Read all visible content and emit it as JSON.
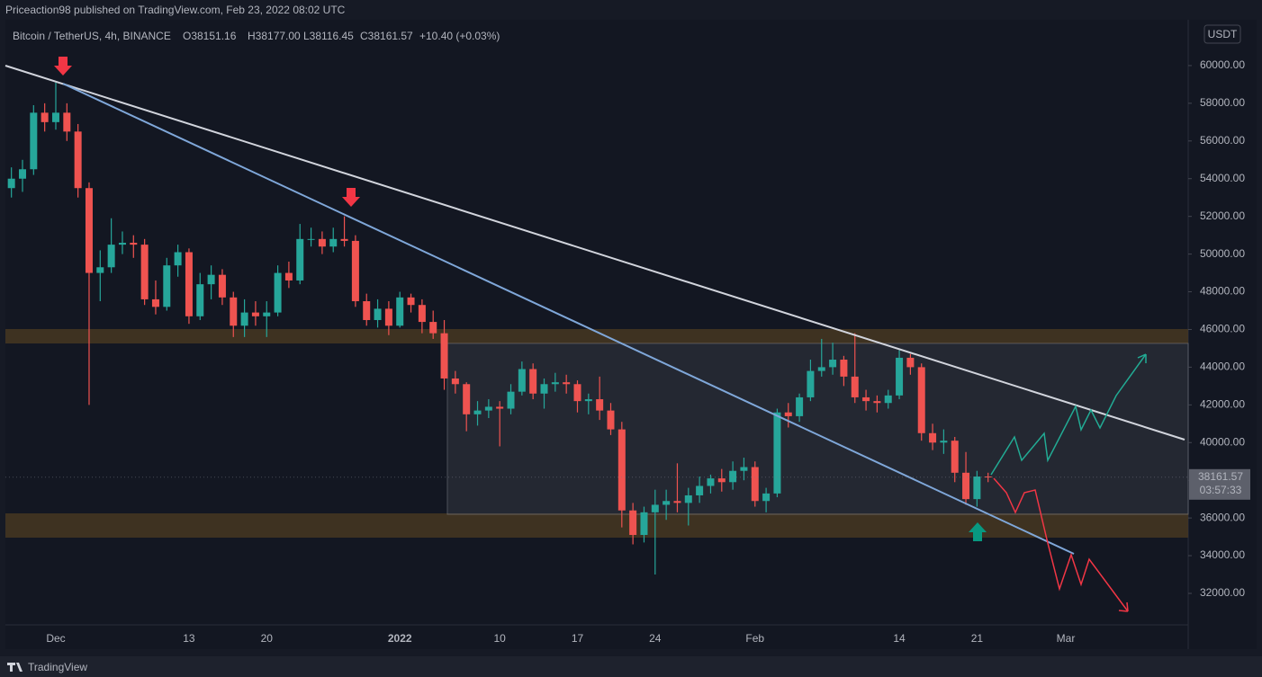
{
  "header": {
    "publisher": "Priceaction98 published on TradingView.com, Feb 23, 2022 08:02 UTC"
  },
  "legend": {
    "symbol": "Bitcoin / TetherUS, 4h, BINANCE",
    "open": "O38151.16",
    "high": "H38177.00",
    "low": "L38116.45",
    "close": "C38161.57",
    "change": "+10.40 (+0.03%)"
  },
  "currency": "USDT",
  "countdown": "03:57:33",
  "footer": {
    "brand": "TradingView"
  },
  "chart_data": {
    "type": "candlestick",
    "categories": [
      null,
      null,
      null,
      null,
      "Dec",
      null,
      null,
      null,
      null,
      null,
      null,
      null,
      null,
      null,
      null,
      null,
      "13",
      null,
      null,
      null,
      null,
      null,
      null,
      "20",
      null,
      null,
      null,
      null,
      null,
      null,
      null,
      null,
      null,
      null,
      null,
      "2022",
      null,
      null,
      null,
      null,
      null,
      null,
      null,
      null,
      "10",
      null,
      null,
      null,
      null,
      null,
      null,
      "17",
      null,
      null,
      null,
      null,
      null,
      null,
      "24",
      null,
      null,
      null,
      null,
      null,
      null,
      null,
      null,
      "Feb",
      null,
      null,
      null,
      null,
      null,
      null,
      null,
      null,
      null,
      null,
      null,
      null,
      "14",
      null,
      null,
      null,
      null,
      null,
      null,
      "21",
      null,
      null,
      null,
      null,
      null,
      null,
      null,
      "Mar",
      null,
      null,
      null,
      null,
      null,
      null,
      null,
      null,
      null,
      null,
      null
    ],
    "open": [
      53500,
      54000,
      54500,
      57500,
      57000,
      57500,
      56500,
      53500,
      49000,
      49300,
      50500,
      50600,
      50500,
      47600,
      47200,
      49400,
      50100,
      46700,
      48400,
      48900,
      47700,
      46200,
      46900,
      46700,
      46900,
      49000,
      48600,
      50800,
      50800,
      50400,
      50800,
      50700,
      47500,
      46500,
      47100,
      46200,
      47700,
      47300,
      46400,
      45800,
      43400,
      43100,
      41500,
      41700,
      41900,
      41800,
      42700,
      43900,
      42600,
      43100,
      43200,
      43100,
      42200,
      42300,
      41700,
      40700,
      36400,
      35100,
      36300,
      36700,
      36900,
      36800,
      37200,
      37700,
      38100,
      37900,
      38500,
      38700,
      36900,
      37300,
      41600,
      41400,
      42400,
      43800,
      44000,
      44400,
      43500,
      42400,
      42200,
      42100,
      42500,
      44500,
      44000,
      40500,
      40000,
      40100,
      38400,
      37000,
      38200,
      null,
      null,
      null,
      null,
      null,
      null,
      null,
      null,
      null,
      null,
      null,
      null,
      null,
      null,
      null,
      null,
      null,
      null
    ],
    "high": [
      54600,
      55000,
      57900,
      58000,
      59100,
      58000,
      56900,
      53800,
      50200,
      51900,
      51200,
      51000,
      50800,
      48600,
      49800,
      50500,
      50300,
      49000,
      49400,
      49200,
      48000,
      47600,
      47500,
      47500,
      49400,
      49600,
      51600,
      51400,
      51200,
      51400,
      52000,
      51000,
      47900,
      47600,
      47500,
      48000,
      47900,
      47600,
      47000,
      46500,
      43800,
      43200,
      42200,
      42300,
      42200,
      43100,
      44300,
      44200,
      43400,
      43700,
      43600,
      43300,
      42600,
      43500,
      42100,
      41100,
      36800,
      36600,
      37500,
      37500,
      38900,
      37600,
      38200,
      38300,
      38600,
      39000,
      39200,
      39000,
      37600,
      41800,
      42100,
      42600,
      44400,
      45500,
      45300,
      44600,
      45800,
      42800,
      42500,
      42800,
      44900,
      44700,
      44200,
      41000,
      40700,
      40300,
      39500,
      38500,
      38400,
      null,
      null,
      null,
      null,
      null,
      null,
      null,
      null,
      null,
      null,
      null,
      null,
      null,
      null,
      null,
      null,
      null,
      null
    ],
    "low": [
      53000,
      53300,
      54200,
      56500,
      56600,
      56000,
      53000,
      42000,
      47500,
      49000,
      50000,
      49800,
      47300,
      46800,
      47000,
      48800,
      46300,
      46500,
      47600,
      47300,
      45600,
      45600,
      46200,
      45600,
      46700,
      48200,
      48400,
      50400,
      50000,
      50100,
      50400,
      47200,
      46200,
      46100,
      45700,
      46100,
      46900,
      45800,
      45500,
      42800,
      42600,
      40600,
      40900,
      41300,
      39800,
      41500,
      42500,
      42300,
      41800,
      42700,
      42600,
      41600,
      41500,
      41200,
      40400,
      35500,
      34600,
      34700,
      33000,
      35900,
      36300,
      35600,
      36800,
      37300,
      37400,
      37500,
      38000,
      36600,
      36300,
      37100,
      40800,
      41100,
      42200,
      43500,
      43600,
      43000,
      42100,
      41700,
      41600,
      41800,
      42300,
      43600,
      40100,
      39600,
      39400,
      37900,
      36700,
      36600,
      37900,
      null,
      null,
      null,
      null,
      null,
      null,
      null,
      null,
      null,
      null,
      null,
      null,
      null,
      null,
      null,
      null,
      null,
      null
    ],
    "close": [
      54000,
      54500,
      57500,
      57000,
      57500,
      56500,
      53500,
      49000,
      49300,
      50500,
      50600,
      50500,
      47600,
      47200,
      49400,
      50100,
      46700,
      48400,
      48900,
      47700,
      46200,
      46900,
      46700,
      46900,
      49000,
      48600,
      50800,
      50800,
      50400,
      50800,
      50700,
      47500,
      46500,
      47100,
      46200,
      47700,
      47300,
      46400,
      45800,
      43400,
      43100,
      41500,
      41700,
      41900,
      41800,
      42700,
      43900,
      42600,
      43100,
      43200,
      43100,
      42200,
      42300,
      41700,
      40700,
      36400,
      35100,
      36300,
      36700,
      36900,
      36800,
      37200,
      37700,
      38100,
      37900,
      38500,
      38700,
      36900,
      37300,
      41600,
      41400,
      42400,
      43800,
      44000,
      44400,
      43500,
      42400,
      42200,
      42100,
      42500,
      44500,
      44000,
      40500,
      40000,
      40100,
      38400,
      37000,
      38200,
      38161.57,
      null,
      null,
      null,
      null,
      null,
      null,
      null,
      null,
      null,
      null,
      null,
      null,
      null,
      null,
      null,
      null,
      null,
      null
    ],
    "up_color": "#26a69a",
    "down_color": "#ef5350",
    "ylim": [
      30330,
      62430
    ],
    "yticks": [
      {
        "value": 60000,
        "label": "60000.00"
      },
      {
        "value": 58000,
        "label": "58000.00"
      },
      {
        "value": 56000,
        "label": "56000.00"
      },
      {
        "value": 54000,
        "label": "54000.00"
      },
      {
        "value": 52000,
        "label": "52000.00"
      },
      {
        "value": 50000,
        "label": "50000.00"
      },
      {
        "value": 48000,
        "label": "48000.00"
      },
      {
        "value": 46000,
        "label": "46000.00"
      },
      {
        "value": 44000,
        "label": "44000.00"
      },
      {
        "value": 42000,
        "label": "42000.00"
      },
      {
        "value": 40000,
        "label": "40000.00"
      },
      {
        "value": 38000,
        "label": "38000.00"
      },
      {
        "value": 36000,
        "label": "36000.00"
      },
      {
        "value": 34000,
        "label": "34000.00"
      },
      {
        "value": 32000,
        "label": "32000.00"
      }
    ],
    "grid": false
  }
}
